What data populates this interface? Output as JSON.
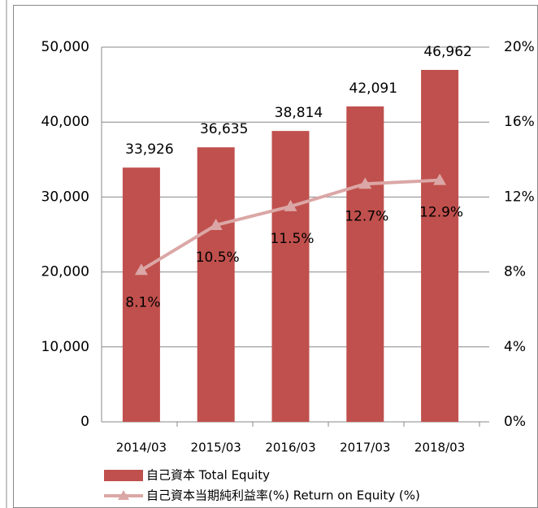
{
  "chart_data": {
    "type": "bar",
    "categories": [
      "2014/03",
      "2015/03",
      "2016/03",
      "2017/03",
      "2018/03"
    ],
    "series": [
      {
        "name": "自己資本 Total Equity",
        "color": "#c0504d",
        "values": [
          33926,
          36635,
          38814,
          42091,
          46962
        ],
        "value_labels": [
          "33,926",
          "36,635",
          "38,814",
          "42,091",
          "46,962"
        ]
      },
      {
        "name": "自己資本当期純利益率(%) Return on Equity (%)",
        "type": "line",
        "axis": "y2",
        "color": "#dba7a6",
        "values": [
          8.1,
          10.5,
          11.5,
          12.7,
          12.9
        ],
        "value_labels": [
          "8.1%",
          "10.5%",
          "11.5%",
          "12.7%",
          "12.9%"
        ]
      }
    ],
    "ylim": [
      0,
      50000
    ],
    "yticks": [
      0,
      {
        "value": 10000,
        "label": "10,000"
      },
      {
        "value": 20000,
        "label": "20,000"
      },
      {
        "value": 30000,
        "label": "30,000"
      },
      {
        "value": 40000,
        "label": "40,000"
      },
      {
        "value": 50000,
        "label": "50,000"
      }
    ],
    "y2lim": [
      0,
      20
    ],
    "y2ticks": [
      {
        "value": 0,
        "label": "0%"
      },
      {
        "value": 4,
        "label": "4%"
      },
      {
        "value": 8,
        "label": "8%"
      },
      {
        "value": 12,
        "label": "12%"
      },
      {
        "value": 16,
        "label": "16%"
      },
      {
        "value": 20,
        "label": "20%"
      }
    ],
    "grid": true,
    "legend": "bottom"
  }
}
